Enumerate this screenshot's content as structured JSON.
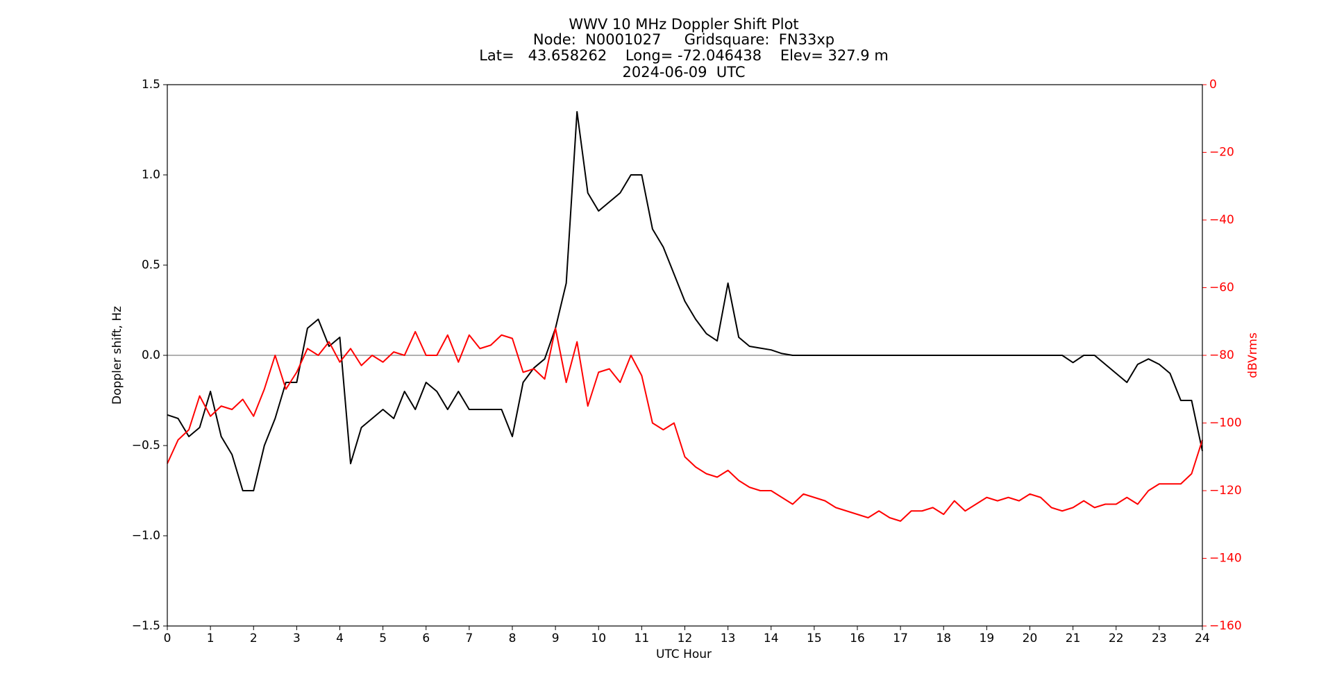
{
  "chart_data": {
    "type": "line",
    "title": [
      "WWV 10 MHz Doppler Shift Plot",
      "Node:  N0001027     Gridsquare:  FN33xp",
      "Lat=   43.658262    Long= -72.046438    Elev= 327.9 m",
      "2024-06-09  UTC"
    ],
    "xlabel": "UTC Hour",
    "ylabel": "Doppler shift, Hz",
    "y2label": "dBVrms",
    "x": [
      0,
      0.25,
      0.5,
      0.75,
      1,
      1.25,
      1.5,
      1.75,
      2,
      2.25,
      2.5,
      2.75,
      3,
      3.25,
      3.5,
      3.75,
      4,
      4.25,
      4.5,
      4.75,
      5,
      5.25,
      5.5,
      5.75,
      6,
      6.25,
      6.5,
      6.75,
      7,
      7.25,
      7.5,
      7.75,
      8,
      8.25,
      8.5,
      8.75,
      9,
      9.25,
      9.5,
      9.75,
      10,
      10.25,
      10.5,
      10.75,
      11,
      11.25,
      11.5,
      11.75,
      12,
      12.25,
      12.5,
      12.75,
      13,
      13.25,
      13.5,
      13.75,
      14,
      14.25,
      14.5,
      14.75,
      15,
      15.25,
      15.5,
      15.75,
      16,
      16.25,
      16.5,
      16.75,
      17,
      17.25,
      17.5,
      17.75,
      18,
      18.25,
      18.5,
      18.75,
      19,
      19.25,
      19.5,
      19.75,
      20,
      20.25,
      20.5,
      20.75,
      21,
      21.25,
      21.5,
      21.75,
      22,
      22.25,
      22.5,
      22.75,
      23,
      23.25,
      23.5,
      23.75,
      24
    ],
    "series": [
      {
        "color": "#000000",
        "axis": "y",
        "values": [
          -0.33,
          -0.35,
          -0.45,
          -0.4,
          -0.2,
          -0.45,
          -0.55,
          -0.75,
          -0.75,
          -0.5,
          -0.35,
          -0.15,
          -0.15,
          0.15,
          0.2,
          0.05,
          0.1,
          -0.6,
          -0.4,
          -0.35,
          -0.3,
          -0.35,
          -0.2,
          -0.3,
          -0.15,
          -0.2,
          -0.3,
          -0.2,
          -0.3,
          -0.3,
          -0.3,
          -0.3,
          -0.45,
          -0.15,
          -0.07,
          -0.02,
          0.15,
          0.4,
          1.35,
          0.9,
          0.8,
          0.85,
          0.9,
          1.0,
          1.0,
          0.7,
          0.6,
          0.45,
          0.3,
          0.2,
          0.12,
          0.08,
          0.4,
          0.1,
          0.05,
          0.04,
          0.03,
          0.01,
          0,
          0,
          0,
          0,
          0,
          0,
          0,
          0,
          0,
          0,
          0,
          0,
          0,
          0,
          0,
          0,
          0,
          0,
          0,
          0,
          0,
          0,
          0,
          0,
          0,
          0,
          -0.04,
          0,
          0,
          -0.05,
          -0.1,
          -0.15,
          -0.05,
          -0.02,
          -0.05,
          -0.1,
          -0.25,
          -0.25,
          -0.53
        ]
      },
      {
        "color": "#ff0000",
        "axis": "y2",
        "values": [
          -112,
          -105,
          -102,
          -92,
          -98,
          -95,
          -96,
          -93,
          -98,
          -90,
          -80,
          -90,
          -85,
          -78,
          -80,
          -76,
          -82,
          -78,
          -83,
          -80,
          -82,
          -79,
          -80,
          -73,
          -80,
          -80,
          -74,
          -82,
          -74,
          -78,
          -77,
          -74,
          -75,
          -85,
          -84,
          -87,
          -72,
          -88,
          -76,
          -95,
          -85,
          -84,
          -88,
          -80,
          -86,
          -100,
          -102,
          -100,
          -110,
          -113,
          -115,
          -116,
          -114,
          -117,
          -119,
          -120,
          -120,
          -122,
          -124,
          -121,
          -122,
          -123,
          -125,
          -126,
          -127,
          -128,
          -126,
          -128,
          -129,
          -126,
          -126,
          -125,
          -127,
          -123,
          -126,
          -124,
          -122,
          -123,
          -122,
          -123,
          -121,
          -122,
          -125,
          -126,
          -125,
          -123,
          -125,
          -124,
          -124,
          -122,
          -124,
          -120,
          -118,
          -118,
          -118,
          -115,
          -105
        ]
      }
    ],
    "xlim": [
      0,
      24
    ],
    "xticks": [
      0,
      1,
      2,
      3,
      4,
      5,
      6,
      7,
      8,
      9,
      10,
      11,
      12,
      13,
      14,
      15,
      16,
      17,
      18,
      19,
      20,
      21,
      22,
      23,
      24
    ],
    "ylim": [
      -1.5,
      1.5
    ],
    "yticks": [
      {
        "value": -1.5,
        "label": "−1.5"
      },
      {
        "value": -1.0,
        "label": "−1.0"
      },
      {
        "value": -0.5,
        "label": "−0.5"
      },
      {
        "value": 0,
        "label": "0.0"
      },
      0.5,
      {
        "value": 1.0,
        "label": "1.0"
      },
      1.5
    ],
    "y2lim": [
      -160,
      0
    ],
    "y2ticks": [
      0,
      {
        "value": -20,
        "label": "−20"
      },
      {
        "value": -40,
        "label": "−40"
      },
      {
        "value": -60,
        "label": "−60"
      },
      {
        "value": -80,
        "label": "−80"
      },
      {
        "value": -100,
        "label": "−100"
      },
      {
        "value": -120,
        "label": "−120"
      },
      {
        "value": -140,
        "label": "−140"
      },
      {
        "value": -160,
        "label": "−160"
      }
    ],
    "hline": 0,
    "grid": false
  }
}
